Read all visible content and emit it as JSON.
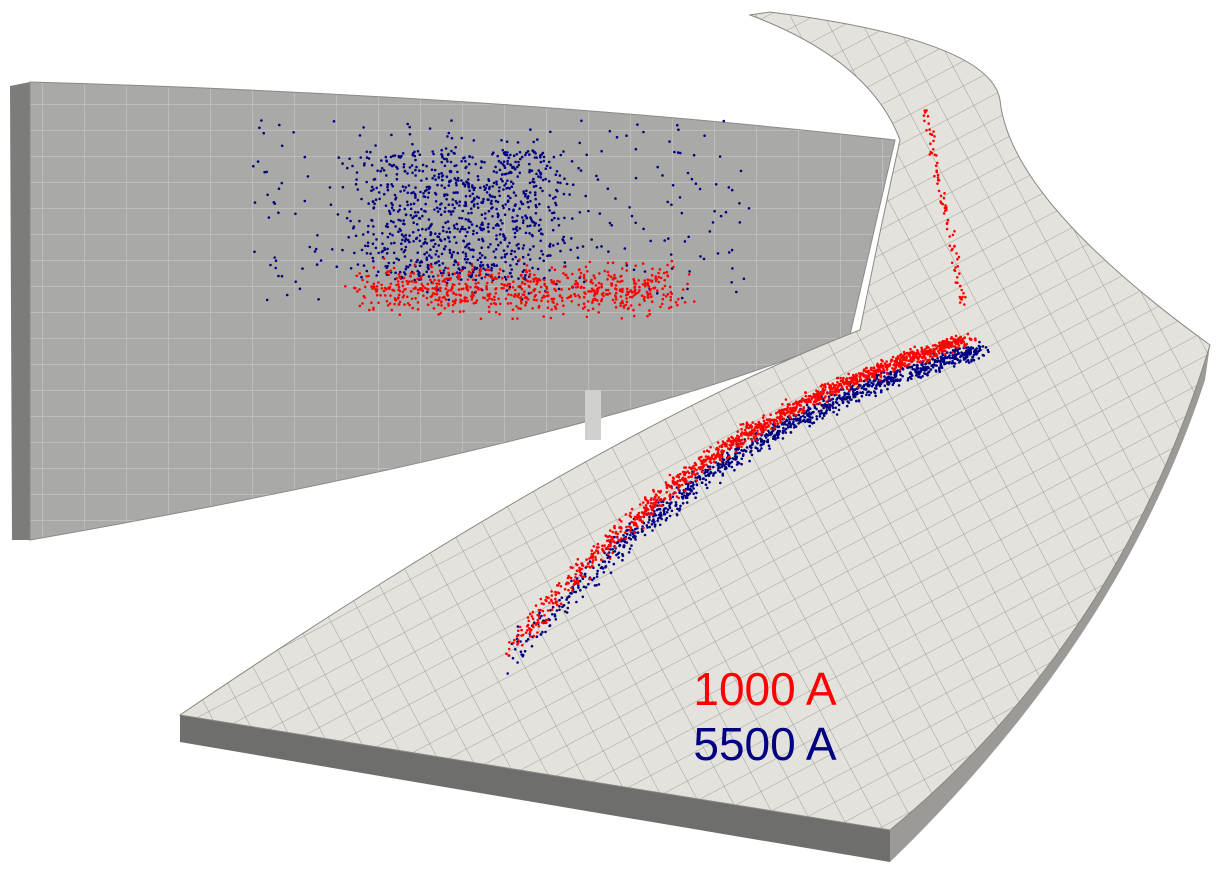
{
  "labels": [
    {
      "text": "1000 A",
      "color": "#ff0000"
    },
    {
      "text": "5500 A",
      "color": "#000080"
    }
  ]
}
